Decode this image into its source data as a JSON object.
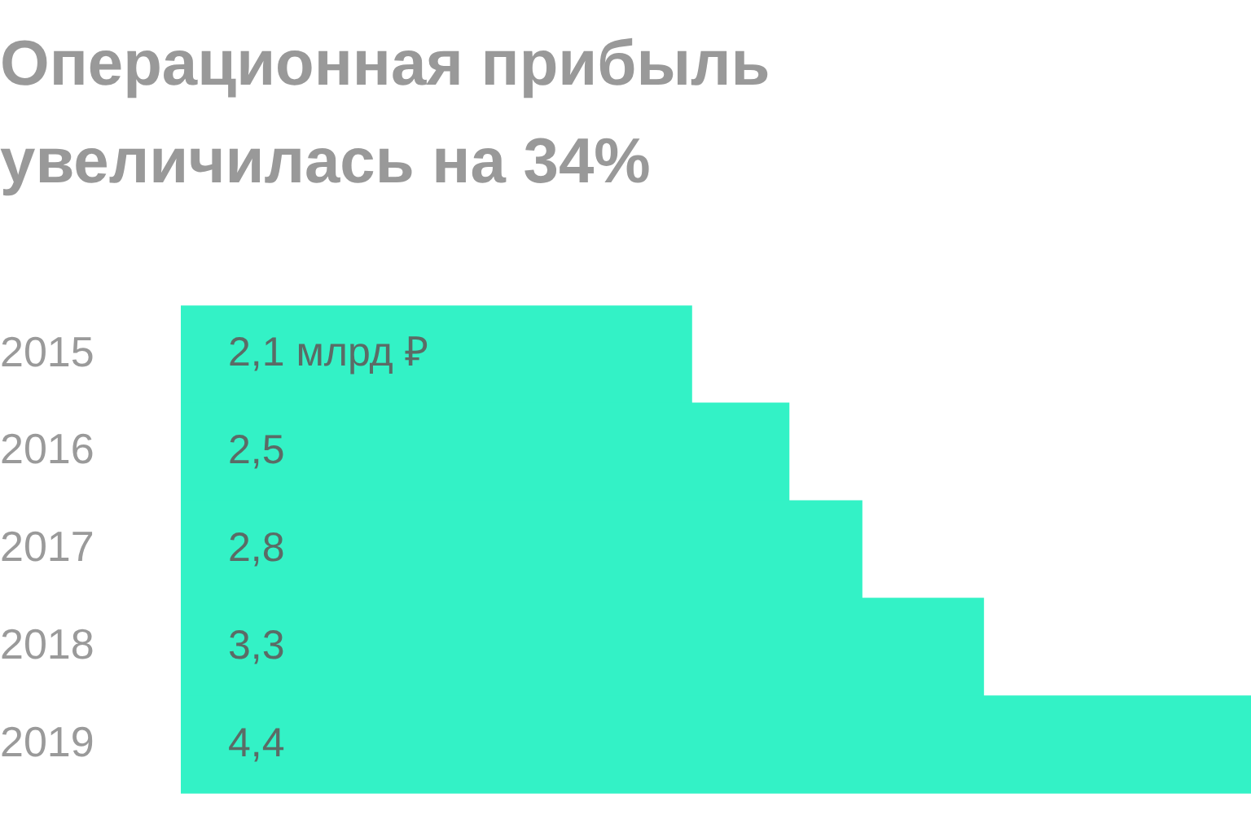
{
  "chart_data": {
    "type": "bar",
    "orientation": "horizontal",
    "title": "Операционная прибыль увеличилась на 34%",
    "categories": [
      "2015",
      "2016",
      "2017",
      "2018",
      "2019"
    ],
    "values": [
      2.1,
      2.5,
      2.8,
      3.3,
      4.4
    ],
    "value_labels": [
      "2,1 млрд ₽",
      "2,5",
      "2,8",
      "3,3",
      "4,4"
    ],
    "color": "#33f2c6",
    "tick_labels": "y"
  }
}
